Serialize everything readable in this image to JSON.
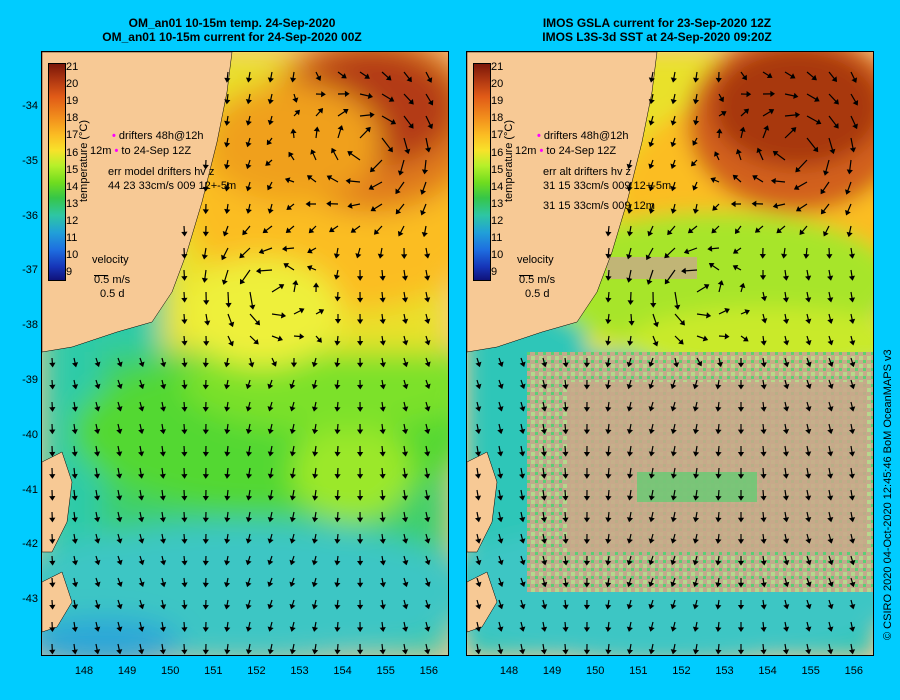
{
  "left_panel": {
    "title_line1": "OM_an01 10-15m temp. 24-Sep-2020",
    "title_line2": "OM_an01 10-15m current for 24-Sep-2020 00Z",
    "legend_line1": "drifters 48h@12h",
    "legend_line2": "to 24-Sep 12Z",
    "legend_line2_prefix": "12m",
    "legend_line3": "err model drifters hv z",
    "legend_line4": "44 23 33cm/s 009 12+-5m",
    "velocity_label": "velocity",
    "velocity_scale": "0.5 m/s",
    "time_scale": "0.5 d"
  },
  "right_panel": {
    "title_line1": "IMOS GSLA current for 23-Sep-2020 12Z",
    "title_line2": "IMOS L3S-3d SST at 24-Sep-2020 09:20Z",
    "legend_line1": "drifters 48h@12h",
    "legend_line2": "to 24-Sep 12Z",
    "legend_line2_prefix": "12m",
    "legend_line3": "err alt drifters hv z",
    "legend_line4": "31 15 33cm/s 009 12+-5m",
    "legend_line5": "31 15 33cm/s 009 12m",
    "velocity_label": "velocity",
    "velocity_scale": "0.5 m/s",
    "time_scale": "0.5 d"
  },
  "colorbar": {
    "label": "temperature (°C)",
    "ticks": [
      "21",
      "20",
      "19",
      "18",
      "17",
      "16",
      "15",
      "14",
      "13",
      "12",
      "11",
      "10",
      "9"
    ]
  },
  "axes": {
    "y_ticks": [
      "-34",
      "-35",
      "-36",
      "-37",
      "-38",
      "-39",
      "-40",
      "-41",
      "-42",
      "-43"
    ],
    "x_ticks": [
      "148",
      "149",
      "150",
      "151",
      "152",
      "153",
      "154",
      "155",
      "156"
    ]
  },
  "side_credit": "© CSIRO 2020   04-Oct-2020 12:45:46 BoM OceanMAPS v3",
  "colors": {
    "background": "#00ccff",
    "land": "#f7c995",
    "no_data": "#c8a98a",
    "drifter_marker": "#ff00ff"
  }
}
